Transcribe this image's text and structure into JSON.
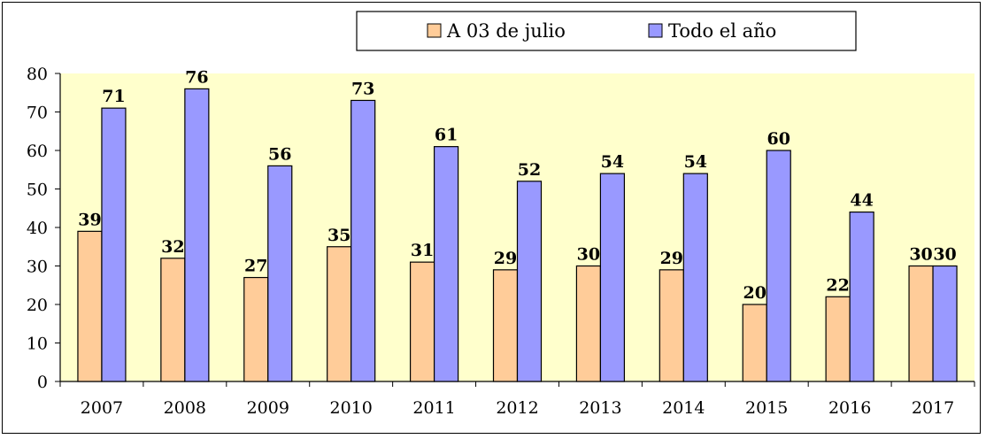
{
  "chart_data": {
    "type": "bar",
    "categories": [
      "2007",
      "2008",
      "2009",
      "2010",
      "2011",
      "2012",
      "2013",
      "2014",
      "2015",
      "2016",
      "2017"
    ],
    "series": [
      {
        "name": "A 03 de julio",
        "values": [
          39,
          32,
          27,
          35,
          31,
          29,
          30,
          29,
          20,
          22,
          30
        ],
        "color": "#FFCC99"
      },
      {
        "name": "Todo el año",
        "values": [
          71,
          76,
          56,
          73,
          61,
          52,
          54,
          54,
          60,
          44,
          30
        ],
        "color": "#9999FF"
      }
    ],
    "yticks": [
      "0",
      "10",
      "20",
      "30",
      "40",
      "50",
      "60",
      "70",
      "80"
    ],
    "ylim": [
      0,
      80
    ],
    "grid": false,
    "legend": "top-center",
    "plot_background": "#FFFFCC",
    "data_labels": true
  }
}
